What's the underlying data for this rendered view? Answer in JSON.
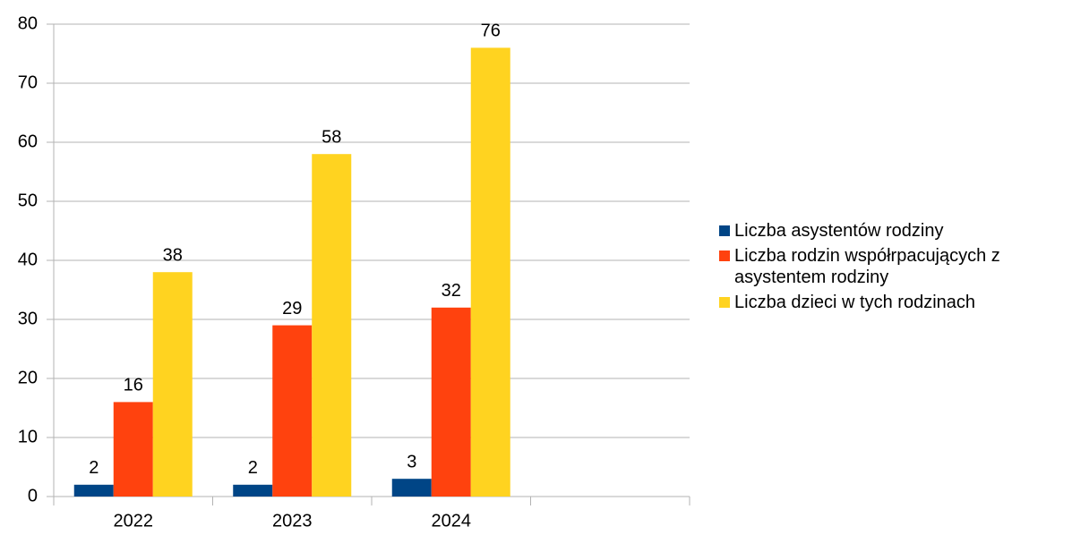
{
  "chart_data": {
    "type": "bar",
    "categories": [
      "2022",
      "2023",
      "2024",
      null
    ],
    "series": [
      {
        "name": "Liczba asystentów rodziny",
        "color": "#004586",
        "values": [
          2,
          2,
          3,
          null
        ]
      },
      {
        "name": "Liczba rodzin współrpacujących z asystentem rodziny",
        "color": "#ff420e",
        "values": [
          16,
          29,
          32,
          null
        ]
      },
      {
        "name": "Liczba dzieci w tych rodzinach",
        "color": "#ffd320",
        "values": [
          38,
          58,
          76,
          null
        ]
      }
    ],
    "ylim": [
      0,
      80
    ],
    "yticks": [
      0,
      10,
      20,
      30,
      40,
      50,
      60,
      70,
      80
    ],
    "grid": true,
    "legend": "right"
  }
}
